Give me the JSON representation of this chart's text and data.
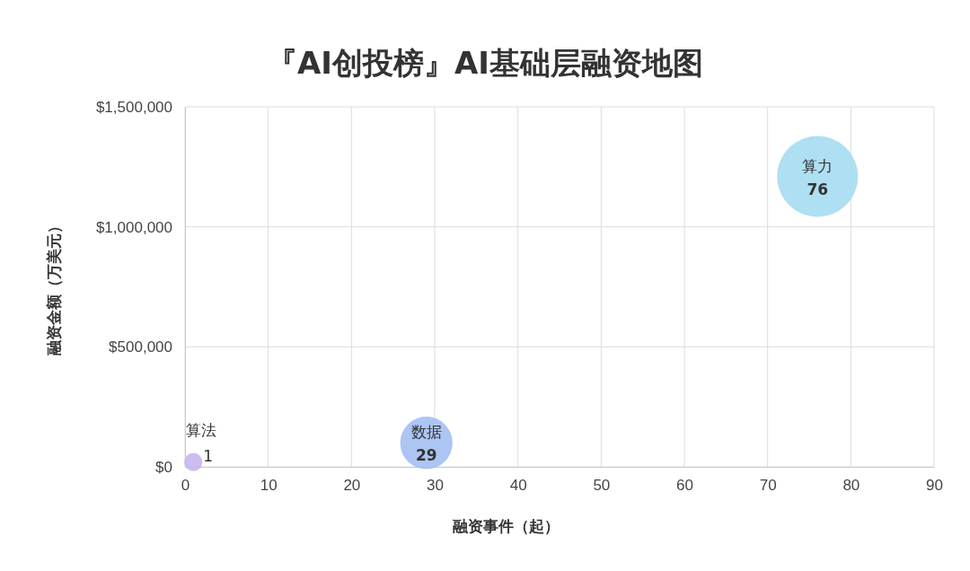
{
  "chart_data": {
    "type": "bubble",
    "title": "『AI创投榜』AI基础层融资地图",
    "xlabel": "融资事件（起）",
    "ylabel": "融资金额（万美元）",
    "xlim": [
      0,
      90
    ],
    "xticks": [
      0,
      10,
      20,
      30,
      40,
      50,
      60,
      70,
      80,
      90
    ],
    "ylim": [
      0,
      1500000
    ],
    "yticks": [
      {
        "value": 0,
        "label": "$0"
      },
      {
        "value": 500000,
        "label": "$500,000"
      },
      {
        "value": 1000000,
        "label": "$1,000,000"
      },
      {
        "value": 1500000,
        "label": "$1,500,000"
      }
    ],
    "grid": true,
    "annotations": [
      {
        "text": "76",
        "x": 76,
        "y": 1210000
      },
      {
        "text": "29",
        "x": 29,
        "y": 100000
      },
      {
        "text": "1",
        "x": 1,
        "y": 20000
      }
    ],
    "series": [
      {
        "name": "算力",
        "color": "#a6dcf1",
        "x": [
          76
        ],
        "values": [
          1210000
        ],
        "sizes": [
          1
        ]
      },
      {
        "name": "数据",
        "color": "#a4bff2",
        "x": [
          29
        ],
        "values": [
          100000
        ],
        "sizes": [
          0.42
        ]
      },
      {
        "name": "算法",
        "color": "#c6b5f0",
        "x": [
          1
        ],
        "values": [
          20000
        ],
        "sizes": [
          0.05
        ]
      }
    ]
  }
}
